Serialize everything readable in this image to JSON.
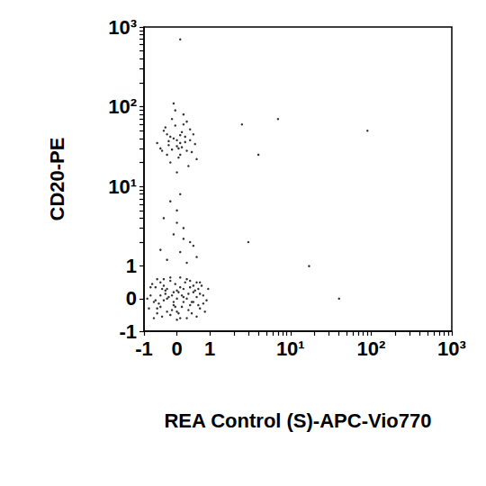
{
  "chart_data": {
    "type": "scatter",
    "x_label": "REA Control (S)-APC-Vio770",
    "y_label": "CD20-PE",
    "color": "#000000",
    "marker": "circle",
    "grid": false,
    "xlim": [
      -1,
      1000
    ],
    "ylim": [
      -1,
      1000
    ],
    "xticks": [
      -1,
      0,
      1,
      {
        "value": 10,
        "label": "10¹"
      },
      {
        "value": 100,
        "label": "10²"
      },
      {
        "value": 1000,
        "label": "10³"
      }
    ],
    "yticks": [
      -1,
      0,
      1,
      {
        "value": 10,
        "label": "10¹"
      },
      {
        "value": 100,
        "label": "10²"
      },
      {
        "value": 1000,
        "label": "10³"
      }
    ],
    "x": [
      -0.8,
      -0.6,
      -0.4,
      -0.2,
      0,
      0.2,
      0.4,
      0.6,
      0.8,
      -0.7,
      -0.5,
      -0.3,
      -0.1,
      0.1,
      0.3,
      0.5,
      0.7,
      -0.65,
      -0.45,
      -0.25,
      -0.05,
      0.15,
      0.35,
      0.55,
      0.75,
      0.9,
      -0.85,
      -0.55,
      -0.35,
      -0.15,
      0.05,
      0.25,
      0.45,
      0.65,
      0.85,
      -0.75,
      -0.5,
      -0.3,
      -0.1,
      0.1,
      0.3,
      0.5,
      0.7,
      -0.6,
      -0.4,
      -0.2,
      0.0,
      0.2,
      0.4,
      0.6,
      -0.9,
      -0.7,
      0.95,
      0.8,
      -0.2,
      0.1,
      -0.4,
      0.4,
      0.0,
      -0.6,
      -0.3,
      0.3,
      0.6,
      -0.8,
      0.7,
      -0.1,
      0.2,
      -0.5,
      0.5,
      0.0,
      -0.35,
      0.35,
      -0.15,
      0.15,
      -0.65,
      0.65,
      -0.45,
      0.45,
      -0.05,
      0.05,
      -0.3,
      0.1,
      0.4,
      -0.1,
      0.2,
      0.5,
      -0.4,
      0.0,
      0.3,
      -0.2,
      0.1,
      0.6,
      -0.5,
      0.2,
      0.0,
      -0.5,
      -0.3,
      -0.1,
      0.1,
      0.3,
      0.5,
      -0.4,
      -0.2,
      0.0,
      0.2,
      0.4,
      0.6,
      -0.6,
      -0.35,
      -0.15,
      0.05,
      0.25,
      0.45,
      -0.25,
      0.15,
      0.35,
      -0.05,
      0.0,
      0.1,
      -0.2,
      0.3,
      -0.45,
      0.55,
      -0.1,
      0.2,
      -0.3,
      0.4,
      0.0,
      0.1,
      -0.15,
      0.25,
      -0.05,
      0.05,
      0.15,
      -0.25,
      2.5,
      4,
      7,
      17,
      40,
      90,
      3,
      0.1
    ],
    "values": [
      0.1,
      -0.3,
      0.4,
      -0.5,
      0.0,
      0.3,
      -0.2,
      0.5,
      0.1,
      -0.1,
      0.5,
      -0.4,
      0.2,
      -0.6,
      0.6,
      -0.1,
      -0.3,
      0.35,
      -0.55,
      0.05,
      0.45,
      -0.25,
      0.15,
      0.25,
      0.4,
      -0.05,
      -0.3,
      -0.15,
      0.25,
      -0.35,
      0.2,
      0.5,
      -0.45,
      -0.2,
      -0.4,
      0.45,
      0.1,
      0.0,
      -0.1,
      0.35,
      -0.6,
      0.4,
      0.15,
      -0.45,
      -0.05,
      0.55,
      -0.4,
      0.05,
      0.55,
      -0.55,
      0.0,
      -0.6,
      0.3,
      -0.15,
      0.65,
      0.65,
      0.6,
      0.35,
      -0.65,
      0.6,
      0.3,
      0.0,
      0.05,
      0.35,
      0.5,
      -0.2,
      -0.1,
      -0.25,
      0.2,
      0.25,
      0.15,
      -0.35,
      0.1,
      0.1,
      -0.05,
      0.3,
      0.3,
      -0.1,
      -0.25,
      -0.45,
      1.2,
      1.5,
      2.0,
      2.5,
      3.0,
      1.8,
      4.0,
      5.0,
      1.1,
      6.5,
      8.0,
      1.3,
      1.6,
      2.2,
      3.5,
      30,
      25,
      40,
      35,
      28,
      45,
      50,
      20,
      32,
      60,
      38,
      22,
      35,
      55,
      70,
      30,
      42,
      27,
      33,
      48,
      18,
      90,
      38,
      25,
      42,
      65,
      28,
      34,
      110,
      80,
      45,
      52,
      15,
      44,
      29,
      36,
      58,
      23,
      31,
      37,
      60,
      25,
      70,
      1.0,
      0.0,
      50,
      2.0,
      700
    ]
  }
}
